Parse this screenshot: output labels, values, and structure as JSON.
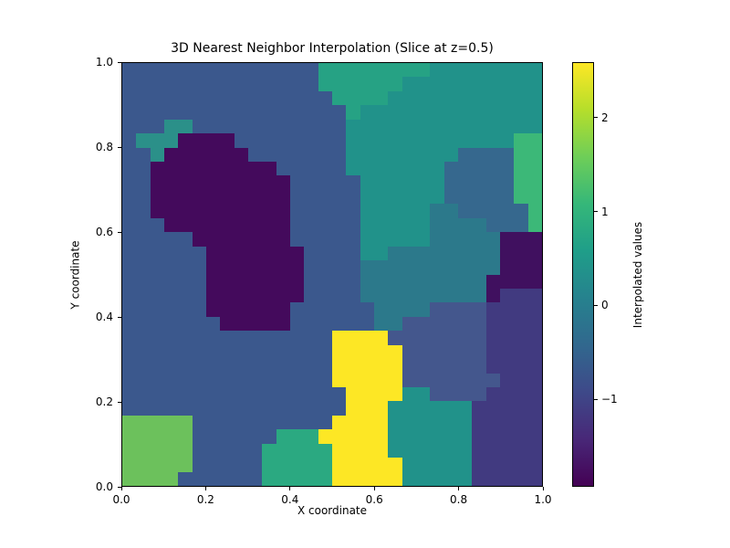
{
  "title": "3D Nearest Neighbor Interpolation (Slice at z=0.5)",
  "axes": {
    "xlabel": "X coordinate",
    "ylabel": "Y coordinate",
    "x_tick_labels": [
      "0.0",
      "0.2",
      "0.4",
      "0.6",
      "0.8",
      "1.0"
    ],
    "y_tick_labels": [
      "0.0",
      "0.2",
      "0.4",
      "0.6",
      "0.8",
      "1.0"
    ],
    "xlim": [
      0,
      1
    ],
    "ylim": [
      0,
      1
    ]
  },
  "colorbar": {
    "label": "Interpolated values",
    "tick_labels": [
      "2",
      "1",
      "0",
      "−1"
    ],
    "tick_values": [
      2,
      1,
      0,
      -1
    ],
    "vmin": -1.93,
    "vmax": 2.59,
    "colormap": "viridis",
    "viridis_stops": [
      "#440154",
      "#482878",
      "#3e4989",
      "#31688e",
      "#26828e",
      "#1f9e89",
      "#35b779",
      "#6ece58",
      "#b5de2b",
      "#fde725"
    ]
  },
  "chart_data": {
    "type": "heatmap",
    "interpolation": "nearest-neighbor",
    "slice_z": 0.5,
    "grid_resolution": 30,
    "xlim": [
      0,
      1
    ],
    "ylim": [
      0,
      1
    ],
    "title": "3D Nearest Neighbor Interpolation (Slice at z=0.5)",
    "xlabel": "X coordinate",
    "ylabel": "Y coordinate",
    "legend_label": "Interpolated values",
    "points": [
      {
        "x": 0.14,
        "y": 0.93,
        "value": -0.6,
        "color": "#3b588d"
      },
      {
        "x": 0.4,
        "y": 0.88,
        "value": -0.6,
        "color": "#3b588d"
      },
      {
        "x": 0.03,
        "y": 0.775,
        "value": -0.6,
        "color": "#3b588d"
      },
      {
        "x": 0.08,
        "y": 0.5,
        "value": -0.6,
        "color": "#3b588d"
      },
      {
        "x": 0.3,
        "y": 0.24,
        "value": -0.6,
        "color": "#3b588d"
      },
      {
        "x": 0.5,
        "y": 0.62,
        "value": -0.6,
        "color": "#3b588d"
      },
      {
        "x": 0.45,
        "y": 0.25,
        "value": -0.6,
        "color": "#3b588d"
      },
      {
        "x": 0.08,
        "y": 0.3,
        "value": -0.6,
        "color": "#3b588d"
      },
      {
        "x": 0.24,
        "y": 0.03,
        "value": -0.6,
        "color": "#3b588d"
      },
      {
        "x": 0.52,
        "y": 0.44,
        "value": -0.6,
        "color": "#3b588d"
      },
      {
        "x": 0.07,
        "y": 0.88,
        "value": -0.6,
        "color": "#3b588d"
      },
      {
        "x": 0.13,
        "y": 0.77,
        "value": -1.85,
        "color": "#440a5c"
      },
      {
        "x": 0.19,
        "y": 0.71,
        "value": -1.85,
        "color": "#440a5c"
      },
      {
        "x": 0.34,
        "y": 0.5,
        "value": -1.85,
        "color": "#440a5c"
      },
      {
        "x": 0.31,
        "y": 0.63,
        "value": -1.85,
        "color": "#440a5c"
      },
      {
        "x": 0.08,
        "y": 0.81,
        "value": 0.4,
        "color": "#2b9089"
      },
      {
        "x": 0.58,
        "y": 0.99,
        "value": 0.7,
        "color": "#26a284"
      },
      {
        "x": 0.63,
        "y": 0.64,
        "value": 0.45,
        "color": "#21928a"
      },
      {
        "x": 0.68,
        "y": 0.84,
        "value": 0.45,
        "color": "#21928a"
      },
      {
        "x": 0.85,
        "y": 0.92,
        "value": 0.45,
        "color": "#21928a"
      },
      {
        "x": 0.72,
        "y": 0.1,
        "value": 0.45,
        "color": "#21928a"
      },
      {
        "x": 0.64,
        "y": 0.46,
        "value": 0.1,
        "color": "#2c798b"
      },
      {
        "x": 0.82,
        "y": 0.56,
        "value": 0.1,
        "color": "#2c798b"
      },
      {
        "x": 0.89,
        "y": 0.67,
        "value": -0.35,
        "color": "#36688e"
      },
      {
        "x": 1.0,
        "y": 0.7,
        "value": 1.1,
        "color": "#3cb878"
      },
      {
        "x": 0.97,
        "y": 0.53,
        "value": -1.8,
        "color": "#40105f"
      },
      {
        "x": 0.98,
        "y": 0.38,
        "value": -1.2,
        "color": "#413a80"
      },
      {
        "x": 0.96,
        "y": 0.08,
        "value": -1.2,
        "color": "#413a80"
      },
      {
        "x": 0.75,
        "y": 0.33,
        "value": -0.7,
        "color": "#44578d"
      },
      {
        "x": 0.57,
        "y": 0.28,
        "value": 2.55,
        "color": "#fde725"
      },
      {
        "x": 0.575,
        "y": 0.05,
        "value": 2.55,
        "color": "#fde725"
      },
      {
        "x": 0.43,
        "y": 0.01,
        "value": 0.85,
        "color": "#2ba981"
      },
      {
        "x": 0.06,
        "y": 0.04,
        "value": 1.6,
        "color": "#6cc15c"
      }
    ]
  }
}
